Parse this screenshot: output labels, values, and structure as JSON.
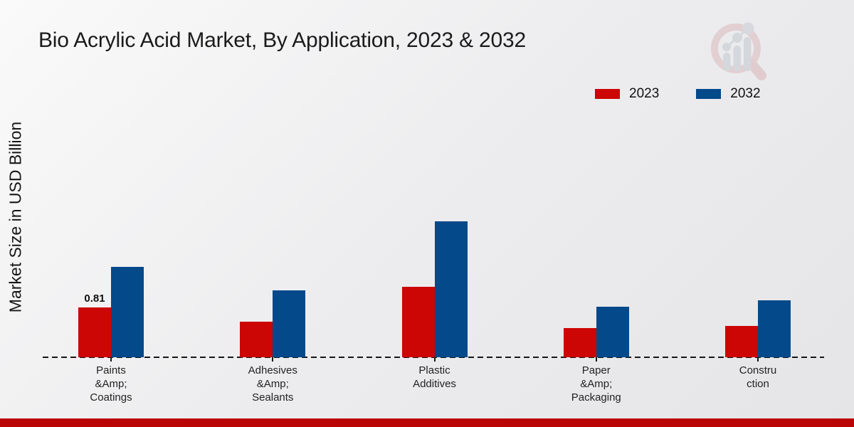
{
  "title": "Bio Acrylic Acid Market, By Application, 2023 & 2032",
  "y_axis_label": "Market Size in USD Billion",
  "legend": [
    {
      "label": "2023",
      "color": "#cc0505"
    },
    {
      "label": "2032",
      "color": "#04498a"
    }
  ],
  "colors": {
    "series_2023": "#cc0505",
    "series_2032": "#04498a",
    "bottom_strip": "#bb0505",
    "axis_line": "#161616"
  },
  "logo": {
    "name": "magnifier-bar-chart-watermark"
  },
  "chart_data": {
    "type": "bar",
    "title": "Bio Acrylic Acid Market, By Application, 2023 & 2032",
    "ylabel": "Market Size in USD Billion",
    "xlabel": "",
    "categories": [
      "Paints\n&Amp;\nCoatings",
      "Adhesives\n&Amp;\nSealants",
      "Plastic\nAdditives",
      "Paper\n&Amp;\nPackaging",
      "Constru\nction"
    ],
    "series": [
      {
        "name": "2023",
        "color": "#cc0505",
        "values": [
          0.81,
          0.58,
          1.15,
          0.47,
          0.51
        ],
        "data_labels": [
          "0.81",
          "",
          "",
          "",
          ""
        ]
      },
      {
        "name": "2032",
        "color": "#04498a",
        "values": [
          1.47,
          1.09,
          2.21,
          0.82,
          0.93
        ],
        "data_labels": [
          "",
          "",
          "",
          "",
          ""
        ]
      }
    ],
    "legend_position": "top-right",
    "grid": false,
    "y_axis_ticks_visible": false,
    "baseline_style": "dashed"
  }
}
